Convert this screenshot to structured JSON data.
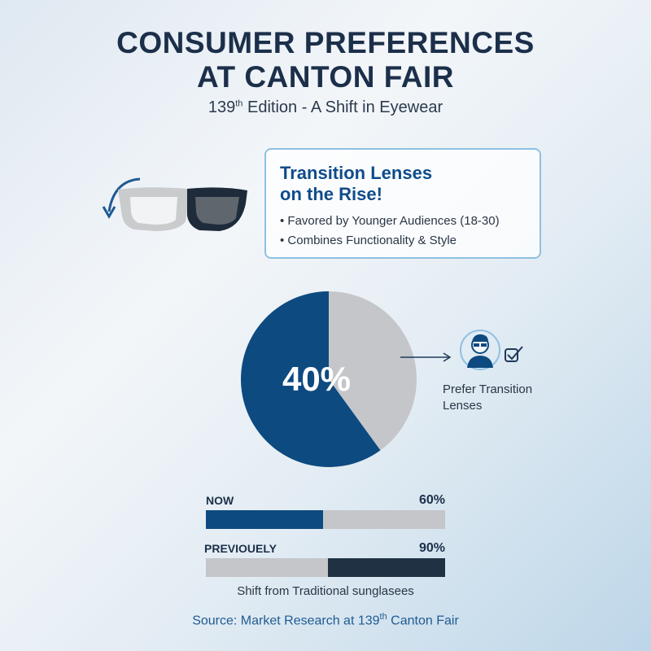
{
  "header": {
    "title_line1": "CONSUMER PREFERENCES",
    "title_line2": "AT CANTON FAIR",
    "subtitle_pre": "139",
    "subtitle_sup": "th",
    "subtitle_post": " Edition - A Shift in Eyewear"
  },
  "callout": {
    "title_line1": "Transition Lenses",
    "title_line2": "on the Rise!",
    "bullets": [
      "Favored by Younger Audiences (18-30)",
      "Combines Functionality & Style"
    ]
  },
  "icons": [
    "rotate-arrow-icon",
    "glasses-icon",
    "user-glasses-icon",
    "check-icon",
    "arrow-right-icon"
  ],
  "colors": {
    "blue": "#0d4a80",
    "gray": "#c4c6c9",
    "dark": "#1f3142",
    "accent": "#0f4c8a"
  },
  "chart_data": [
    {
      "type": "pie",
      "values": [
        40,
        60
      ],
      "colors": [
        "#c4c6c9",
        "#0d4a80"
      ],
      "center_label": "40%",
      "annotation": "Prefer Transition Lenses"
    },
    {
      "type": "bar",
      "orientation": "horizontal",
      "categories": [
        "NOW",
        "PREVIOUELY"
      ],
      "value_labels": [
        "60%",
        "90%"
      ],
      "fill_fraction": [
        0.49,
        0.49
      ],
      "fill_colors": [
        "#0d4a80",
        "#1f3142"
      ],
      "fill_side": [
        "left",
        "right"
      ],
      "caption": "Shift from Traditional sunglasees"
    }
  ],
  "footer": {
    "pre": "Source: Market Research at 139",
    "sup": "th",
    "post": " Canton Fair"
  }
}
